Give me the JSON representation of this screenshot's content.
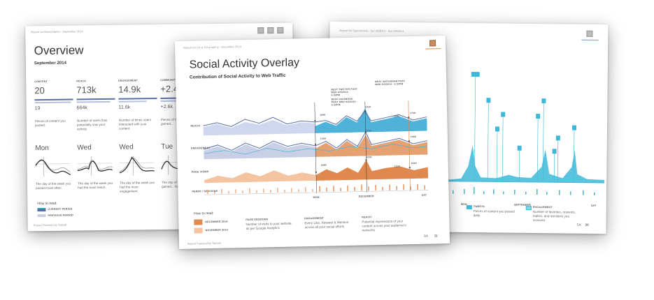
{
  "left_page": {
    "header": "Report for Brand Name - September 2014",
    "title": "Overview",
    "subtitle": "September 2014",
    "metrics": [
      {
        "label": "CONTENT",
        "value": "20",
        "prev": "19",
        "desc": "Pieces of content you posted."
      },
      {
        "label": "REACH",
        "value": "713k",
        "prev": "664k",
        "desc": "Number of users that potentially saw your activity."
      },
      {
        "label": "ENGAGEMENT",
        "value": "14.9k",
        "prev": "11.6k",
        "desc": "Number of times users interacted with your content."
      },
      {
        "label": "COMMUNITY",
        "value": "+2.4",
        "prev": "+2.6k",
        "desc": "Pieces of co... you gained..."
      }
    ],
    "days": [
      {
        "day": "Mon",
        "desc": "The day of the week you posted most often."
      },
      {
        "day": "Wed",
        "desc": "The day of the week you had the most reach."
      },
      {
        "day": "Wed",
        "desc": "The day of the week you had the most engagement."
      },
      {
        "day": "Tue",
        "desc": "The day of th... you gained... followers"
      }
    ],
    "how_to_read": "How to read:",
    "legend": [
      "CURRENT PERIOD",
      "PREVIOUS PERIOD"
    ],
    "footer": "Report Powered by Sumall"
  },
  "center_page": {
    "header": "Report for Un or SA property - December 2014",
    "title": "Social Activity Overlay",
    "subtitle": "Contribution of Social Activity to Web Traffic",
    "annotations": [
      "BEST TWITTER POST WED 9/3/2014 - 5:32PM",
      "BEST FACEBOOK POST WED 9/3/2014 - 5:32PM",
      "BEST INSTAGRAM POST WED 9/3/2014 - 5:32PM"
    ],
    "row_labels": [
      "REACH",
      "ENGAGEMENT",
      "PAGE VIEWS",
      "PENDS / SESSIONS"
    ],
    "peak_labels": [
      "198K",
      "101K",
      "176K",
      "150K",
      "136K",
      "101K",
      "166K",
      "198K",
      "101K",
      "166K",
      "121K"
    ],
    "x_labels": [
      "MON",
      "DECEMBER",
      "SAT"
    ],
    "how_to_read": "How to read:",
    "legend": [
      "DECEMBER 2014",
      "NOVEMBER 2014"
    ],
    "explain": [
      {
        "h": "PAGE SESSIONS",
        "t": "Number of visits to your website as per Google Analytics"
      },
      {
        "h": "ENGAGEMENT",
        "t": "Every Like, Retweet & Mention across all your social efforts"
      },
      {
        "h": "REACH",
        "t": "Potential impressions of your content across your audience's networks"
      }
    ],
    "footer": "Report Powered by Sumall",
    "page_num": "11",
    "brand_mark": "SA",
    "colors": {
      "blue": "#4fb3d9",
      "navy": "#5a6ea8",
      "orange": "#e0894f",
      "peach": "#f4c4a0"
    }
  },
  "right_page": {
    "header": "Report for Supermoms - Sun 9/28/14 - Sat 10/04/14",
    "x_labels": [
      "MON",
      "SEPTEMBER",
      "SAT"
    ],
    "legend": [
      {
        "h": "TWEETS",
        "t": "Pieces of content you posted daily"
      },
      {
        "h": "ENGAGEMENT",
        "t": "Number of favorites, retweets, replies, and mentions you received."
      }
    ],
    "brand_mark": "SA",
    "page_num": "30",
    "colors": {
      "teal": "#3db8d8"
    }
  }
}
